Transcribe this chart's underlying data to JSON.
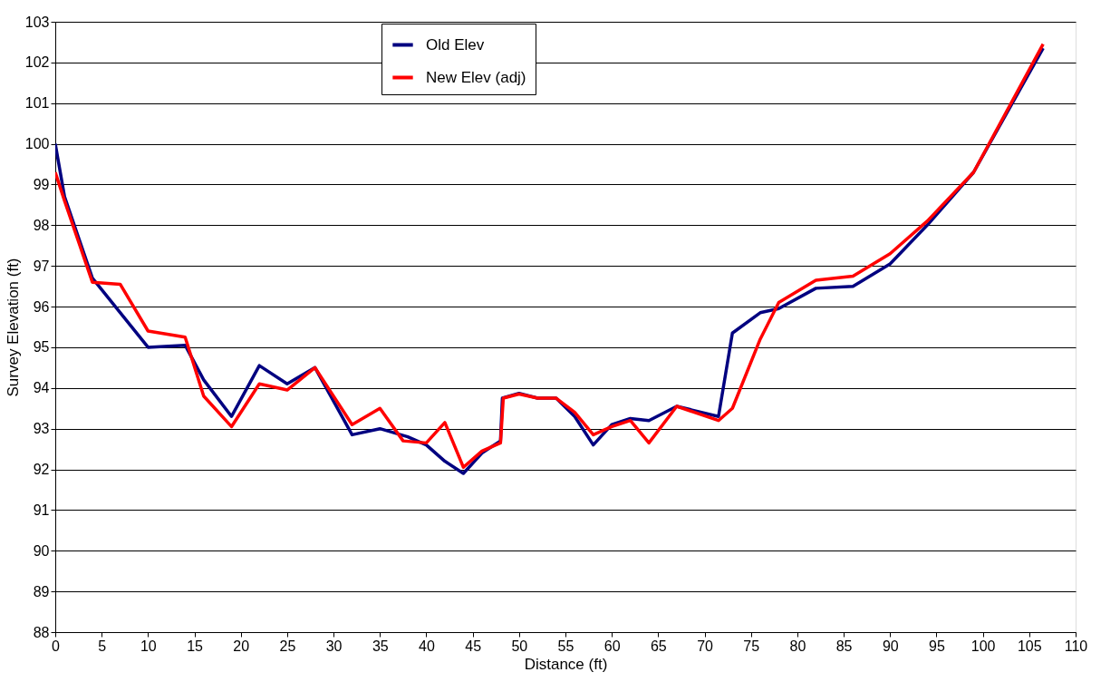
{
  "chart_data": {
    "type": "line",
    "xlabel": "Distance (ft)",
    "ylabel": "Survey Elevation (ft)",
    "xlim": [
      0,
      110
    ],
    "xticks": [
      0,
      5,
      10,
      15,
      20,
      25,
      30,
      35,
      40,
      45,
      50,
      55,
      60,
      65,
      70,
      75,
      80,
      85,
      90,
      95,
      100,
      105,
      110
    ],
    "ylim": [
      88,
      103
    ],
    "yticks": [
      88,
      89,
      90,
      91,
      92,
      93,
      94,
      95,
      96,
      97,
      98,
      99,
      100,
      101,
      102,
      103
    ],
    "grid": "y",
    "legend": "top",
    "marker": "none",
    "line_style": "solid",
    "series": [
      {
        "name": "Old Elev",
        "color": "#000080",
        "x": [
          0,
          1,
          4,
          10,
          14,
          16,
          19,
          22,
          25,
          28,
          32,
          35,
          38,
          40,
          42,
          44,
          46,
          48,
          48.2,
          50,
          52,
          54,
          56,
          58,
          60,
          62,
          64,
          67,
          71.5,
          73,
          76,
          78,
          82,
          86,
          90,
          94,
          99,
          106.5
        ],
        "values": [
          100,
          98.7,
          96.7,
          95.0,
          95.05,
          94.2,
          93.3,
          94.55,
          94.1,
          94.5,
          92.85,
          93.0,
          92.8,
          92.6,
          92.2,
          91.9,
          92.4,
          92.7,
          93.75,
          93.87,
          93.75,
          93.75,
          93.3,
          92.6,
          93.1,
          93.25,
          93.2,
          93.55,
          93.3,
          95.35,
          95.85,
          95.95,
          96.45,
          96.5,
          97.05,
          98.0,
          99.3,
          102.35
        ]
      },
      {
        "name": "New Elev (adj)",
        "color": "#ff0000",
        "x": [
          0,
          1,
          4,
          7,
          10,
          14,
          16,
          19,
          22,
          25,
          28,
          32,
          35,
          37.5,
          40,
          42,
          44,
          46,
          48,
          48.3,
          50,
          52,
          54,
          56,
          58,
          60,
          62,
          64,
          67,
          71.5,
          73,
          76,
          78,
          82,
          86,
          90,
          94,
          99,
          106.5
        ],
        "values": [
          99.3,
          98.6,
          96.6,
          96.55,
          95.4,
          95.25,
          93.8,
          93.05,
          94.1,
          93.95,
          94.5,
          93.1,
          93.5,
          92.7,
          92.65,
          93.15,
          92.05,
          92.45,
          92.65,
          93.75,
          93.85,
          93.75,
          93.75,
          93.4,
          92.85,
          93.05,
          93.2,
          92.65,
          93.55,
          93.2,
          93.5,
          95.2,
          96.1,
          96.65,
          96.75,
          97.3,
          98.1,
          99.3,
          102.45
        ]
      }
    ]
  }
}
